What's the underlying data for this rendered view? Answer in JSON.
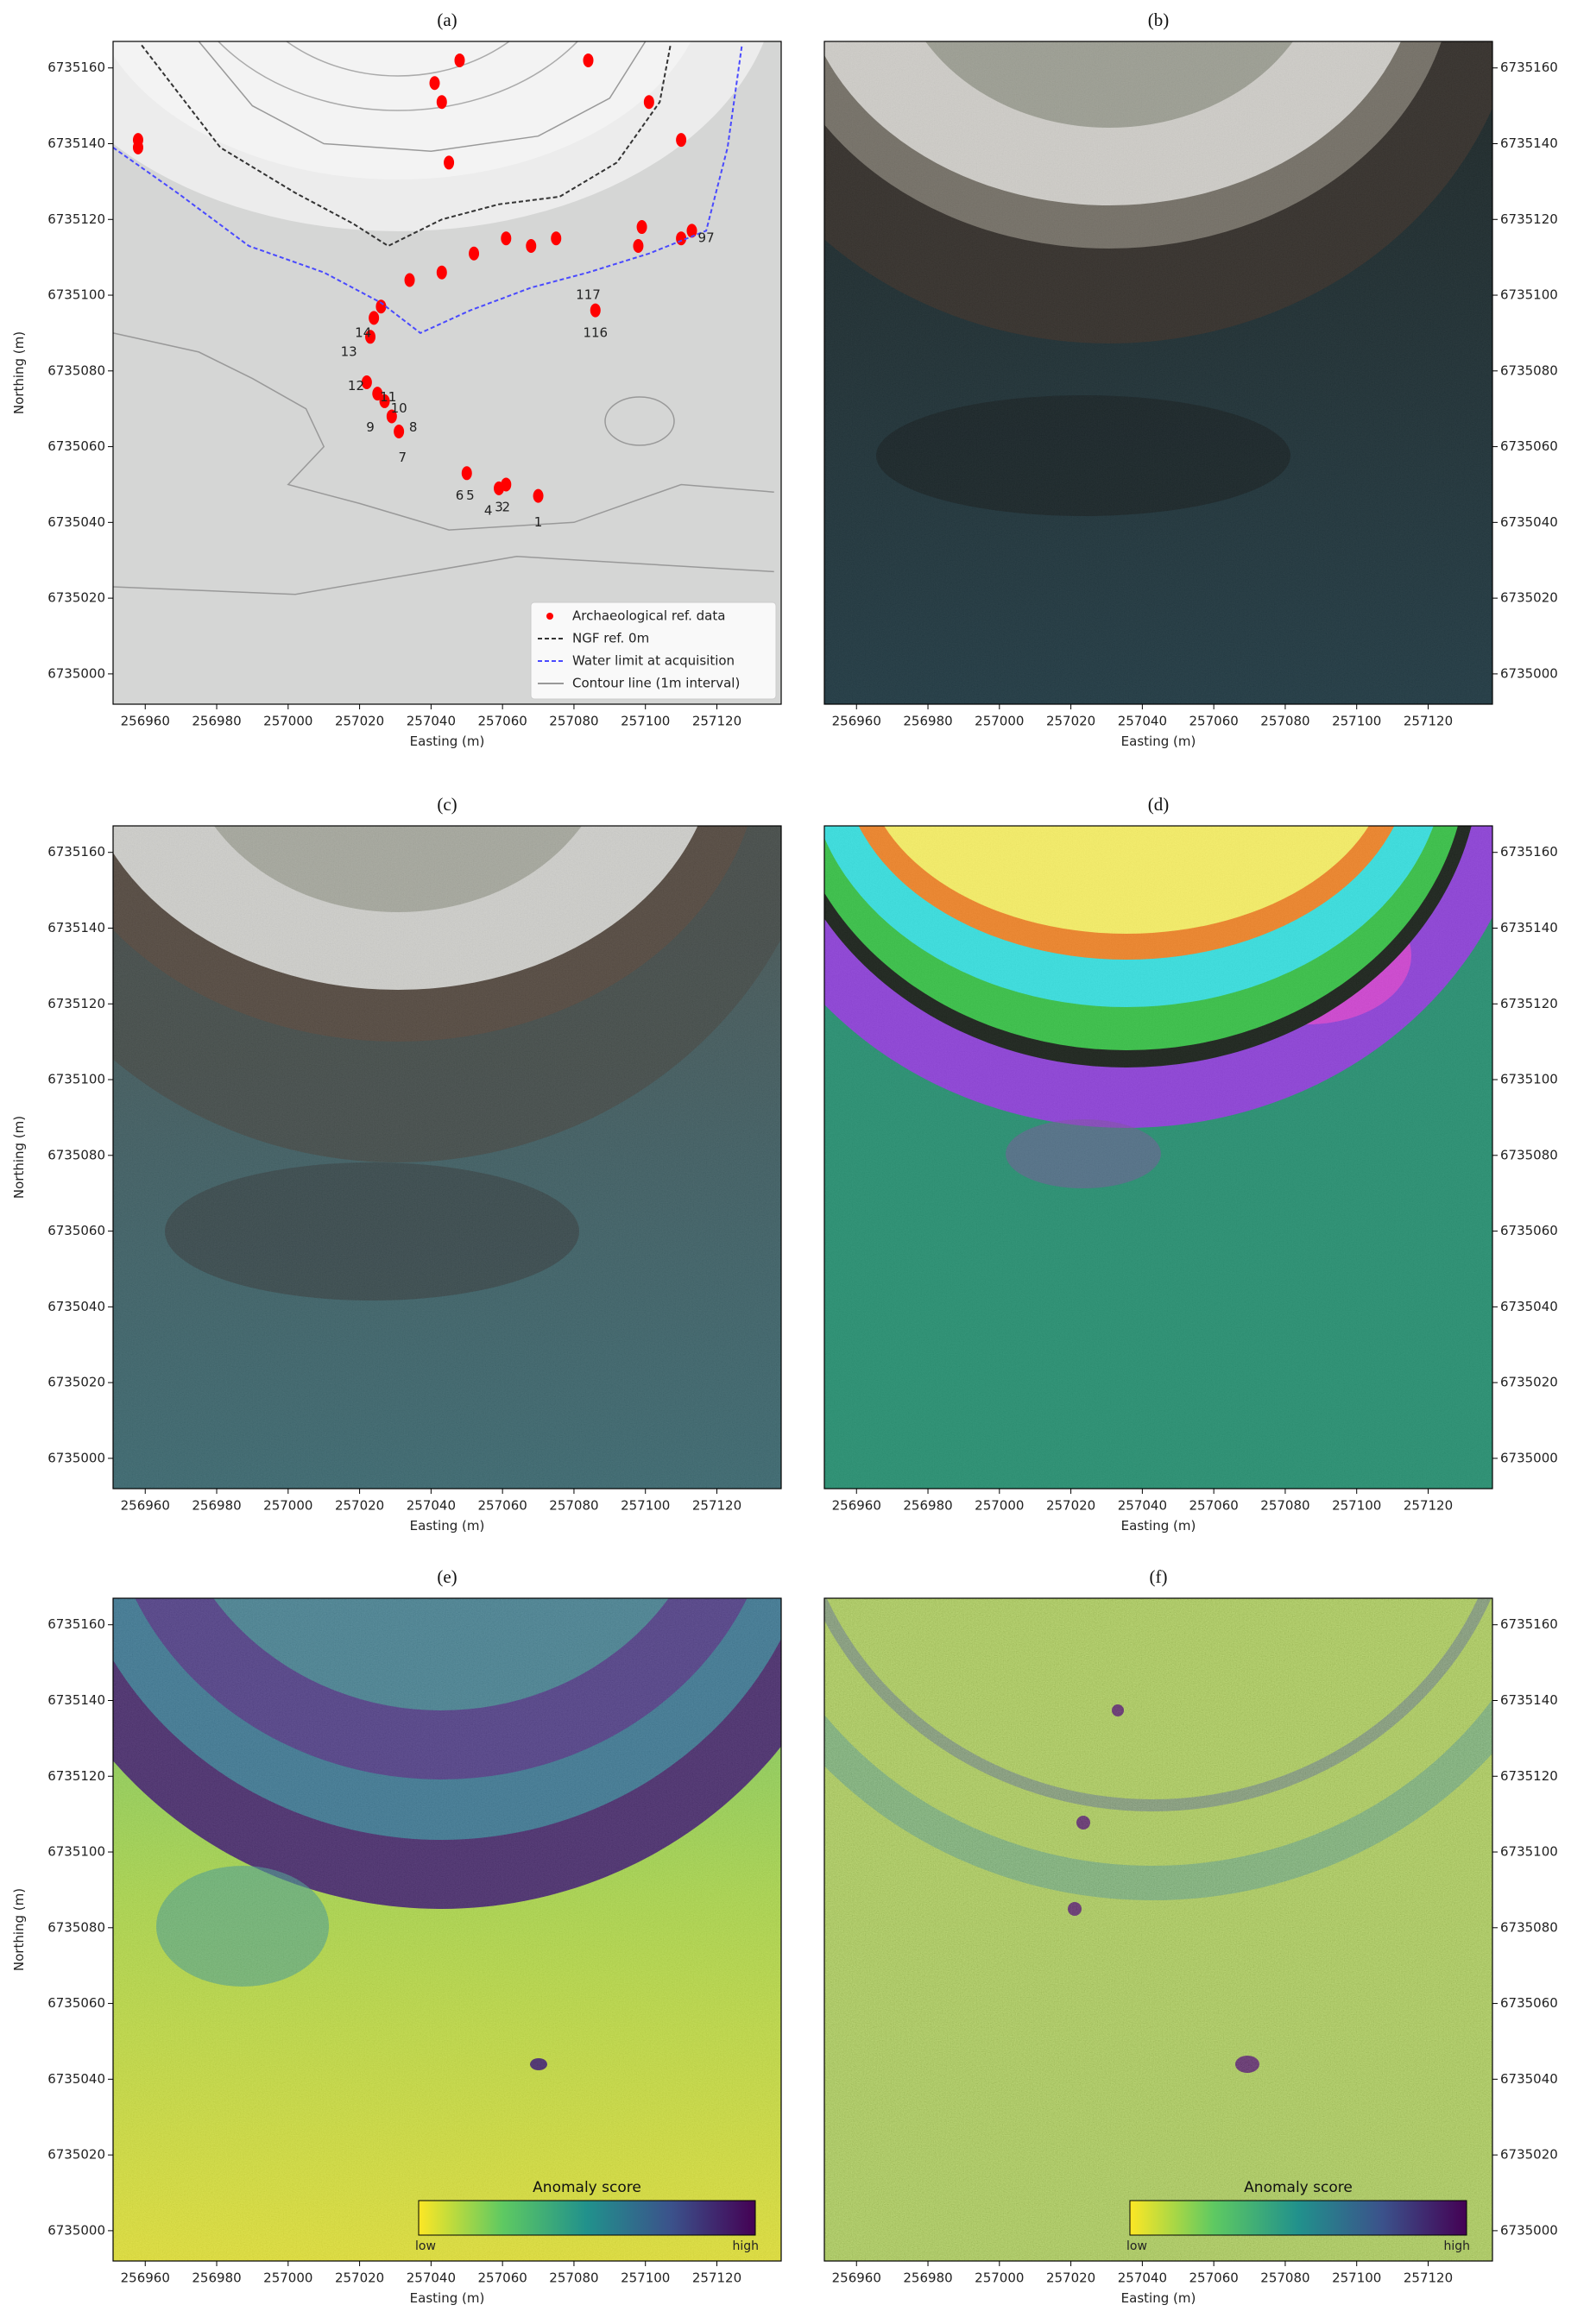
{
  "chart_data": [
    {
      "type": "map",
      "title": "(a)",
      "xlabel": "Easting (m)",
      "ylabel": "Northing (m)",
      "yaxis_side": "left",
      "xlim": [
        256951,
        257138
      ],
      "ylim": [
        6734992,
        6735167
      ],
      "xticks": [
        256960,
        256980,
        257000,
        257020,
        257040,
        257060,
        257080,
        257100,
        257120
      ],
      "yticks": [
        6735000,
        6735020,
        6735040,
        6735060,
        6735080,
        6735100,
        6735120,
        6735140,
        6735160
      ],
      "legend": "lower right",
      "series": [
        {
          "name": "Archaeological ref. data",
          "type": "scatter",
          "color": "#ff0000",
          "x": [
            256958,
            256958,
            257070,
            257061,
            257059,
            257050,
            257031,
            257029,
            257027,
            257025,
            257022,
            257023,
            257024,
            257026,
            257034,
            257043,
            257052,
            257061,
            257068,
            257075,
            257098,
            257099,
            257110,
            257113,
            257086,
            257043,
            257045,
            257048,
            257084,
            257101,
            257110,
            257041
          ],
          "y": [
            6735141,
            6735139,
            6735047,
            6735050,
            6735049,
            6735053,
            6735064,
            6735068,
            6735072,
            6735074,
            6735077,
            6735089,
            6735094,
            6735097,
            6735104,
            6735106,
            6735111,
            6735115,
            6735113,
            6735115,
            6735113,
            6735118,
            6735115,
            6735117,
            6735096,
            6735151,
            6735135,
            6735162,
            6735162,
            6735151,
            6735141,
            6735156
          ]
        },
        {
          "name": "NGF ref. 0m",
          "type": "line",
          "style": "dashed",
          "color": "#333333",
          "x": [
            256959,
            256981,
            257002,
            257018,
            257028,
            257043,
            257059,
            257076,
            257092,
            257104,
            257107
          ],
          "y": [
            6735166,
            6735139,
            6735127,
            6735119,
            6735113,
            6735120,
            6735124,
            6735126,
            6735135,
            6735151,
            6735166
          ]
        },
        {
          "name": "Water limit at acquisition",
          "type": "line",
          "style": "dashed",
          "color": "#4a4aff",
          "x": [
            256951,
            256969,
            256989,
            257010,
            257026,
            257037,
            257051,
            257068,
            257084,
            257101,
            257117,
            257123,
            257127
          ],
          "y": [
            6735139,
            6735127,
            6735113,
            6735106,
            6735098,
            6735090,
            6735096,
            6735102,
            6735106,
            6735111,
            6735117,
            6735139,
            6735166
          ]
        },
        {
          "name": "Contour line (1m interval)",
          "type": "line",
          "style": "solid",
          "color": "#999999",
          "x": [
            256951,
            257002,
            257064,
            257136,
            null,
            256975,
            256990,
            257010,
            257040,
            257070,
            257090,
            257100,
            null,
            256951,
            256975,
            256990,
            257005,
            257010,
            257000,
            257020,
            257045,
            257080,
            257110,
            257136
          ],
          "y": [
            6735023,
            6735021,
            6735031,
            6735027,
            null,
            6735167,
            6735150,
            6735140,
            6735138,
            6735142,
            6735152,
            6735167,
            null,
            6735090,
            6735085,
            6735078,
            6735070,
            6735060,
            6735050,
            6735045,
            6735038,
            6735040,
            6735050,
            6735048
          ]
        }
      ],
      "annotations": [
        {
          "text": "97",
          "x": 257117,
          "y": 6735115
        },
        {
          "text": "117",
          "x": 257084,
          "y": 6735100
        },
        {
          "text": "116",
          "x": 257086,
          "y": 6735090
        },
        {
          "text": "14",
          "x": 257021,
          "y": 6735090
        },
        {
          "text": "13",
          "x": 257017,
          "y": 6735085
        },
        {
          "text": "12",
          "x": 257019,
          "y": 6735076
        },
        {
          "text": "11",
          "x": 257028,
          "y": 6735073
        },
        {
          "text": "10",
          "x": 257031,
          "y": 6735070
        },
        {
          "text": "9",
          "x": 257023,
          "y": 6735065
        },
        {
          "text": "8",
          "x": 257035,
          "y": 6735065
        },
        {
          "text": "7",
          "x": 257032,
          "y": 6735057
        },
        {
          "text": "6",
          "x": 257048,
          "y": 6735047
        },
        {
          "text": "5",
          "x": 257051,
          "y": 6735047
        },
        {
          "text": "4",
          "x": 257056,
          "y": 6735043
        },
        {
          "text": "3",
          "x": 257059,
          "y": 6735044
        },
        {
          "text": "2",
          "x": 257061,
          "y": 6735044
        },
        {
          "text": "1",
          "x": 257070,
          "y": 6735040
        }
      ]
    },
    {
      "type": "image",
      "title": "(b)",
      "xlabel": "Easting (m)",
      "yaxis_side": "right",
      "xlim": [
        256951,
        257138
      ],
      "ylim": [
        6734992,
        6735167
      ],
      "xticks": [
        256960,
        256980,
        257000,
        257020,
        257040,
        257060,
        257080,
        257100,
        257120
      ],
      "yticks": [
        6735000,
        6735020,
        6735040,
        6735060,
        6735080,
        6735100,
        6735120,
        6735140,
        6735160
      ]
    },
    {
      "type": "image",
      "title": "(c)",
      "xlabel": "Easting (m)",
      "ylabel": "Northing (m)",
      "yaxis_side": "left",
      "xlim": [
        256951,
        257138
      ],
      "ylim": [
        6734992,
        6735167
      ],
      "xticks": [
        256960,
        256980,
        257000,
        257020,
        257040,
        257060,
        257080,
        257100,
        257120
      ],
      "yticks": [
        6735000,
        6735020,
        6735040,
        6735060,
        6735080,
        6735100,
        6735120,
        6735140,
        6735160
      ]
    },
    {
      "type": "image",
      "title": "(d)",
      "xlabel": "Easting (m)",
      "yaxis_side": "right",
      "xlim": [
        256951,
        257138
      ],
      "ylim": [
        6734992,
        6735167
      ],
      "xticks": [
        256960,
        256980,
        257000,
        257020,
        257040,
        257060,
        257080,
        257100,
        257120
      ],
      "yticks": [
        6735000,
        6735020,
        6735040,
        6735060,
        6735080,
        6735100,
        6735120,
        6735140,
        6735160
      ]
    },
    {
      "type": "image",
      "title": "(e)",
      "xlabel": "Easting (m)",
      "ylabel": "Northing (m)",
      "yaxis_side": "left",
      "xlim": [
        256951,
        257138
      ],
      "ylim": [
        6734992,
        6735167
      ],
      "xticks": [
        256960,
        256980,
        257000,
        257020,
        257040,
        257060,
        257080,
        257100,
        257120
      ],
      "yticks": [
        6735000,
        6735020,
        6735040,
        6735060,
        6735080,
        6735100,
        6735120,
        6735140,
        6735160
      ],
      "colorbar": {
        "label": "Anomaly score",
        "min_label": "low",
        "max_label": "high",
        "colors": [
          "#fde725",
          "#5ec962",
          "#21918c",
          "#3b528b",
          "#440154"
        ]
      }
    },
    {
      "type": "image",
      "title": "(f)",
      "xlabel": "Easting (m)",
      "yaxis_side": "right",
      "xlim": [
        256951,
        257138
      ],
      "ylim": [
        6734992,
        6735167
      ],
      "xticks": [
        256960,
        256980,
        257000,
        257020,
        257040,
        257060,
        257080,
        257100,
        257120
      ],
      "yticks": [
        6735000,
        6735020,
        6735040,
        6735060,
        6735080,
        6735100,
        6735120,
        6735140,
        6735160
      ],
      "colorbar": {
        "label": "Anomaly score",
        "min_label": "low",
        "max_label": "high",
        "colors": [
          "#fde725",
          "#5ec962",
          "#21918c",
          "#3b528b",
          "#440154"
        ]
      }
    }
  ]
}
